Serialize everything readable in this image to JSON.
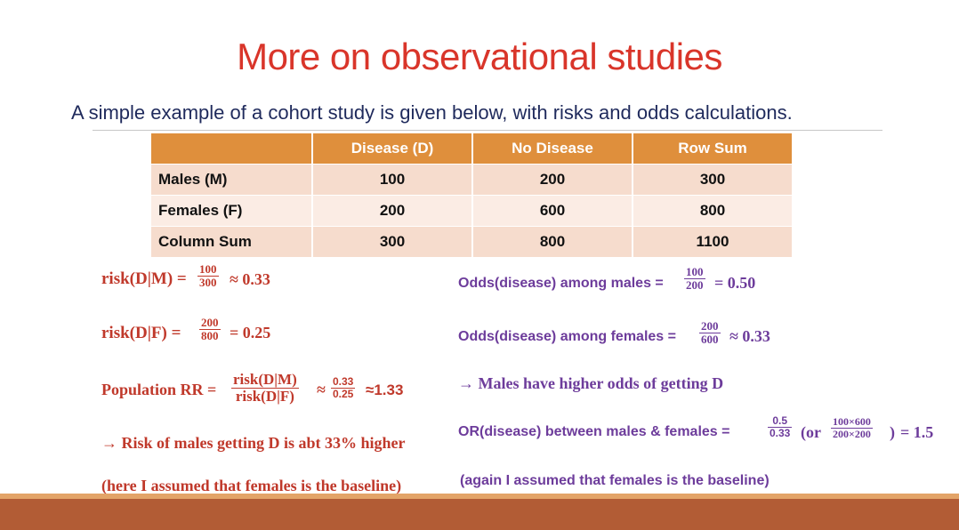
{
  "slide": {
    "title": "More on observational studies",
    "subtitle": "A simple example of a cohort study is given below, with risks and odds calculations."
  },
  "table": {
    "headers": [
      "",
      "Disease (D)",
      "No Disease",
      "Row Sum"
    ],
    "rows": [
      {
        "label": "Males (M)",
        "values": [
          "100",
          "200",
          "300"
        ]
      },
      {
        "label": "Females (F)",
        "values": [
          "200",
          "600",
          "800"
        ]
      },
      {
        "label": "Column Sum",
        "values": [
          "300",
          "800",
          "1100"
        ]
      }
    ]
  },
  "left": {
    "risk_m": {
      "label": "risk(D|M) =",
      "num": "100",
      "den": "300",
      "result": "≈ 0.33"
    },
    "risk_f": {
      "label": "risk(D|F)  =",
      "num": "200",
      "den": "800",
      "result": "= 0.25"
    },
    "rr": {
      "label": "Population RR =",
      "num": "risk(D|M)",
      "den": "risk(D|F)",
      "approx": "≈",
      "num2": "0.33",
      "den2": "0.25",
      "result": "≈1.33"
    },
    "conclusion": "→ Risk of males getting D is abt 33% higher",
    "note": "(here I assumed that females is the baseline)"
  },
  "right": {
    "odds_m": {
      "label": "Odds(disease) among males =",
      "num": "100",
      "den": "200",
      "result": "= 0.50"
    },
    "odds_f": {
      "label": "Odds(disease) among females =",
      "num": "200",
      "den": "600",
      "result": "≈ 0.33"
    },
    "conclusion": "→ Males have higher odds of getting D",
    "or": {
      "label": "OR(disease) between males & females =",
      "num": "0.5",
      "den": "0.33",
      "paren_open": "(or",
      "num2": "100×600",
      "den2": "200×200",
      "paren_close": ")",
      "result": "= 1.5"
    },
    "note": "(again I assumed that females is the baseline)"
  },
  "colors": {
    "title": "#d9352a",
    "header": "#df8f3c",
    "accent_left": "#c0392b",
    "accent_right": "#6d3c9b",
    "band": "#b25c35"
  }
}
